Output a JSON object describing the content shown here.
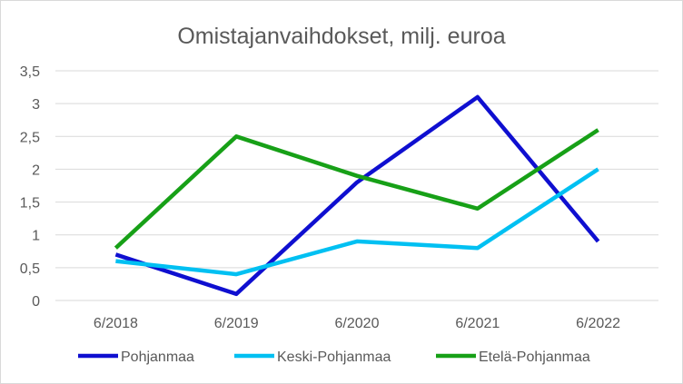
{
  "chart_data": {
    "type": "line",
    "title": "Omistajanvaihdokset, milj. euroa",
    "xlabel": "",
    "ylabel": "",
    "categories": [
      "6/2018",
      "6/2019",
      "6/2020",
      "6/2021",
      "6/2022"
    ],
    "ylim": [
      0,
      3.5
    ],
    "yticks": [
      0,
      0.5,
      1,
      1.5,
      2,
      2.5,
      3,
      3.5
    ],
    "ytick_labels": [
      "0",
      "0,5",
      "1",
      "1,5",
      "2",
      "2,5",
      "3",
      "3,5"
    ],
    "grid": true,
    "legend_position": "bottom",
    "series": [
      {
        "name": "Pohjanmaa",
        "color": "#0f0fd0",
        "values": [
          0.7,
          0.1,
          1.8,
          3.1,
          0.9
        ]
      },
      {
        "name": "Keski-Pohjanmaa",
        "color": "#00c0f2",
        "values": [
          0.6,
          0.4,
          0.9,
          0.8,
          2.0
        ]
      },
      {
        "name": "Etelä-Pohjanmaa",
        "color": "#17a017",
        "values": [
          0.8,
          2.5,
          1.9,
          1.4,
          2.6
        ]
      }
    ]
  }
}
